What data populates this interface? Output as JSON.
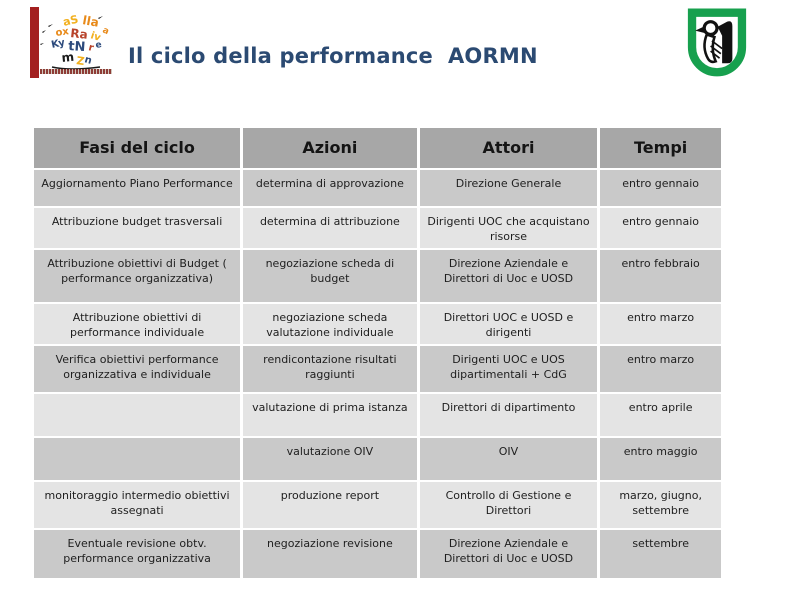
{
  "header": {
    "title": "Il ciclo della performance  AORMN"
  },
  "icons": {
    "left_logo": "aormn-people-logo",
    "right_logo": "marche-region-shield"
  },
  "colors": {
    "title_text": "#2b4a72",
    "accent_bar": "#a32020",
    "table_header_bg": "#a7a7a7",
    "row_band_dark": "#c9c9c9",
    "row_band_light": "#e4e4e4",
    "shield_green": "#17a04e"
  },
  "table": {
    "headers": [
      "Fasi del ciclo",
      "Azioni",
      "Attori",
      "Tempi"
    ],
    "rows": [
      [
        "Aggiornamento Piano Performance",
        "determina di approvazione",
        "Direzione Generale",
        "entro gennaio"
      ],
      [
        "Attribuzione budget trasversali",
        "determina di attribuzione",
        "Dirigenti UOC che acquistano risorse",
        "entro gennaio"
      ],
      [
        "Attribuzione obiettivi di Budget ( performance organizzativa)",
        "negoziazione scheda di budget",
        "Direzione Aziendale e Direttori di Uoc e UOSD",
        "entro febbraio"
      ],
      [
        "Attribuzione obiettivi di performance individuale",
        "negoziazione scheda valutazione individuale",
        "Direttori UOC e UOSD e dirigenti",
        "entro marzo"
      ],
      [
        "Verifica obiettivi performance organizzativa e individuale",
        "rendicontazione risultati raggiunti",
        "Dirigenti UOC e UOS dipartimentali + CdG",
        "entro marzo"
      ],
      [
        "",
        "valutazione di prima istanza",
        "Direttori di dipartimento",
        "entro aprile"
      ],
      [
        "",
        "valutazione OIV",
        "OIV",
        "entro maggio"
      ],
      [
        "monitoraggio intermedio obiettivi assegnati",
        "produzione report",
        "Controllo di Gestione e Direttori",
        "marzo, giugno, settembre"
      ],
      [
        "Eventuale revisione obtv. performance organizzativa",
        "negoziazione revisione",
        "Direzione Aziendale e Direttori di Uoc e UOSD",
        "settembre"
      ]
    ]
  }
}
